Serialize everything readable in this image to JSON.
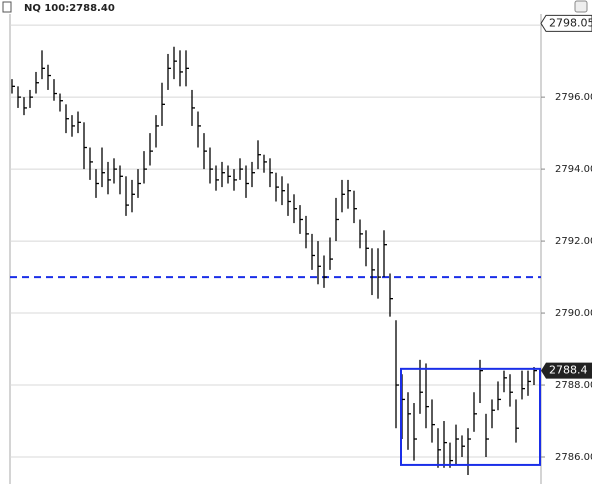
{
  "chart_data": {
    "type": "ohlc",
    "title": "NQ 100:2788.40",
    "ylim": [
      2785.25,
      2798.31
    ],
    "yticks": [
      {
        "value": 2786,
        "label": "2786.00"
      },
      {
        "value": 2788,
        "label": "2788.00"
      },
      {
        "value": 2790,
        "label": "2790.00"
      },
      {
        "value": 2792,
        "label": "2792.00"
      },
      {
        "value": 2794,
        "label": "2794.00"
      },
      {
        "value": 2796,
        "label": "2796.00"
      },
      {
        "value": 2798,
        "label": "2798.00"
      }
    ],
    "grid": true,
    "marker_level": 2798.05,
    "reference_line": {
      "value": 2791.0,
      "color": "#1a2ee8"
    },
    "box": {
      "start": 65,
      "end": 87,
      "top": 2788.45,
      "bottom": 2785.78,
      "color": "#1a2ee8"
    },
    "series": [
      {
        "color": "#000000",
        "high": [
          2796.5,
          2796.3,
          2796.0,
          2796.2,
          2796.7,
          2797.3,
          2796.9,
          2796.5,
          2796.1,
          2795.8,
          2795.5,
          2795.6,
          2795.3,
          2794.6,
          2794.0,
          2794.6,
          2794.2,
          2794.3,
          2794.1,
          2793.8,
          2793.7,
          2794.0,
          2794.5,
          2795.0,
          2795.5,
          2796.4,
          2797.2,
          2797.4,
          2797.3,
          2797.3,
          2796.2,
          2795.6,
          2795.0,
          2794.6,
          2794.1,
          2794.2,
          2794.1,
          2794.0,
          2794.3,
          2794.1,
          2794.2,
          2794.8,
          2794.4,
          2794.3,
          2793.9,
          2793.8,
          2793.6,
          2793.3,
          2793.0,
          2792.7,
          2792.2,
          2792.0,
          2791.6,
          2792.1,
          2793.2,
          2793.7,
          2793.7,
          2793.4,
          2792.6,
          2792.3,
          2791.8,
          2791.8,
          2792.3,
          2791.1,
          2789.8,
          2788.3,
          2787.8,
          2787.5,
          2788.7,
          2788.6,
          2787.6,
          2786.8,
          2787.0,
          2786.4,
          2786.9,
          2786.6,
          2786.8,
          2787.8,
          2788.7,
          2787.2,
          2787.6,
          2788.1,
          2788.4,
          2788.3,
          2787.6,
          2788.4,
          2788.4,
          2788.5
        ],
        "low": [
          2796.1,
          2795.7,
          2795.5,
          2795.7,
          2796.1,
          2796.5,
          2796.2,
          2795.9,
          2795.6,
          2795.0,
          2794.9,
          2795.0,
          2794.0,
          2793.7,
          2793.2,
          2793.5,
          2793.3,
          2793.6,
          2793.3,
          2792.7,
          2792.8,
          2793.2,
          2793.6,
          2794.1,
          2794.6,
          2795.2,
          2796.2,
          2796.5,
          2796.3,
          2796.3,
          2795.2,
          2794.6,
          2794.0,
          2793.6,
          2793.4,
          2793.5,
          2793.6,
          2793.4,
          2793.7,
          2793.2,
          2793.5,
          2794.0,
          2793.9,
          2793.5,
          2793.1,
          2793.0,
          2792.7,
          2792.5,
          2792.2,
          2791.8,
          2791.2,
          2790.8,
          2790.7,
          2791.2,
          2792.0,
          2792.8,
          2792.9,
          2792.5,
          2791.8,
          2791.3,
          2790.5,
          2790.4,
          2791.0,
          2789.9,
          2786.8,
          2786.5,
          2786.2,
          2785.9,
          2787.2,
          2786.8,
          2786.4,
          2785.7,
          2785.7,
          2785.7,
          2785.8,
          2786.0,
          2785.5,
          2786.7,
          2787.5,
          2786.0,
          2786.8,
          2787.3,
          2787.8,
          2787.4,
          2786.4,
          2787.6,
          2787.7,
          2788.0
        ],
        "close": [
          2796.3,
          2796.0,
          2795.7,
          2796.0,
          2796.4,
          2796.8,
          2796.6,
          2796.1,
          2795.9,
          2795.4,
          2795.2,
          2795.3,
          2794.6,
          2794.2,
          2793.6,
          2793.9,
          2793.7,
          2794.0,
          2793.8,
          2793.0,
          2793.3,
          2793.6,
          2794.0,
          2794.5,
          2795.2,
          2795.8,
          2796.8,
          2797.0,
          2796.7,
          2796.8,
          2795.7,
          2795.2,
          2794.5,
          2794.0,
          2793.7,
          2793.9,
          2793.8,
          2793.7,
          2794.0,
          2793.6,
          2793.9,
          2794.4,
          2794.2,
          2793.9,
          2793.5,
          2793.4,
          2793.1,
          2792.9,
          2792.6,
          2792.2,
          2791.6,
          2791.3,
          2791.0,
          2791.5,
          2792.6,
          2793.3,
          2793.4,
          2792.9,
          2792.2,
          2791.8,
          2791.2,
          2791.0,
          2791.9,
          2790.4,
          2788.0,
          2787.6,
          2787.2,
          2786.5,
          2787.8,
          2787.4,
          2786.9,
          2786.2,
          2786.4,
          2785.9,
          2786.5,
          2786.3,
          2786.5,
          2787.2,
          2788.4,
          2786.5,
          2787.3,
          2787.6,
          2788.2,
          2787.8,
          2786.8,
          2787.9,
          2788.1,
          2788.4
        ]
      }
    ]
  }
}
